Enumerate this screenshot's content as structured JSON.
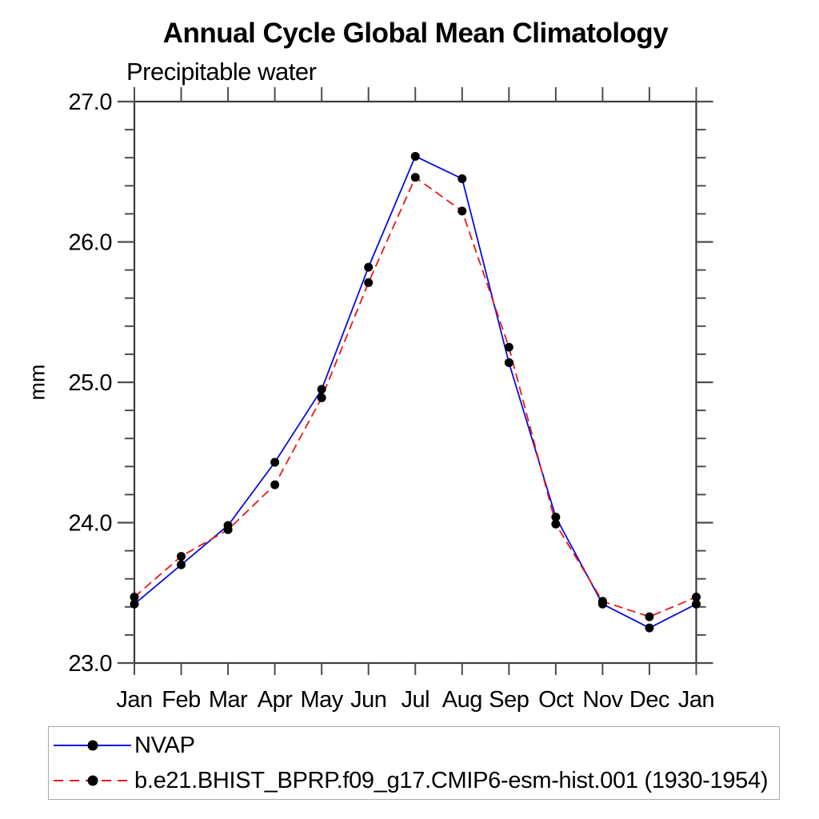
{
  "title": "Annual Cycle Global Mean Climatology",
  "subtitle": "Precipitable water",
  "ylabel": "mm",
  "legend": {
    "items": [
      {
        "label": "NVAP"
      },
      {
        "label": "b.e21.BHIST_BPRP.f09_g17.CMIP6-esm-hist.001 (1930-1954)"
      }
    ]
  },
  "colors": {
    "nvap_line": "#0b0be0",
    "model_line": "#ee1616",
    "marker": "#000000",
    "frame": "#3c3c3c",
    "tick": "#4c4c4c",
    "legend_border": "#a9a9a9"
  },
  "chart_data": {
    "type": "line",
    "title": "Annual Cycle Global Mean Climatology",
    "subtitle": "Precipitable water",
    "ylabel": "mm",
    "categories": [
      "Jan",
      "Feb",
      "Mar",
      "Apr",
      "May",
      "Jun",
      "Jul",
      "Aug",
      "Sep",
      "Oct",
      "Nov",
      "Dec",
      "Jan"
    ],
    "series": [
      {
        "name": "NVAP",
        "style": "solid",
        "color": "#0b0be0",
        "marker": "filled-circle",
        "values": [
          23.42,
          23.7,
          23.98,
          24.43,
          24.95,
          25.82,
          26.61,
          26.45,
          25.14,
          24.04,
          23.42,
          23.25,
          23.42
        ]
      },
      {
        "name": "b.e21.BHIST_BPRP.f09_g17.CMIP6-esm-hist.001 (1930-1954)",
        "style": "dashed",
        "color": "#ee1616",
        "marker": "filled-circle",
        "values": [
          23.47,
          23.76,
          23.95,
          24.27,
          24.89,
          25.71,
          26.46,
          26.22,
          25.25,
          23.99,
          23.44,
          23.33,
          23.47
        ]
      }
    ],
    "ylim": [
      23.0,
      27.0
    ],
    "ytick_major": [
      23.0,
      24.0,
      25.0,
      26.0,
      27.0
    ],
    "ytick_labels": [
      "23.0",
      "24.0",
      "25.0",
      "26.0",
      "27.0"
    ],
    "ytick_minor_step": 0.2,
    "grid": false,
    "legend_position": "bottom-left-box"
  }
}
